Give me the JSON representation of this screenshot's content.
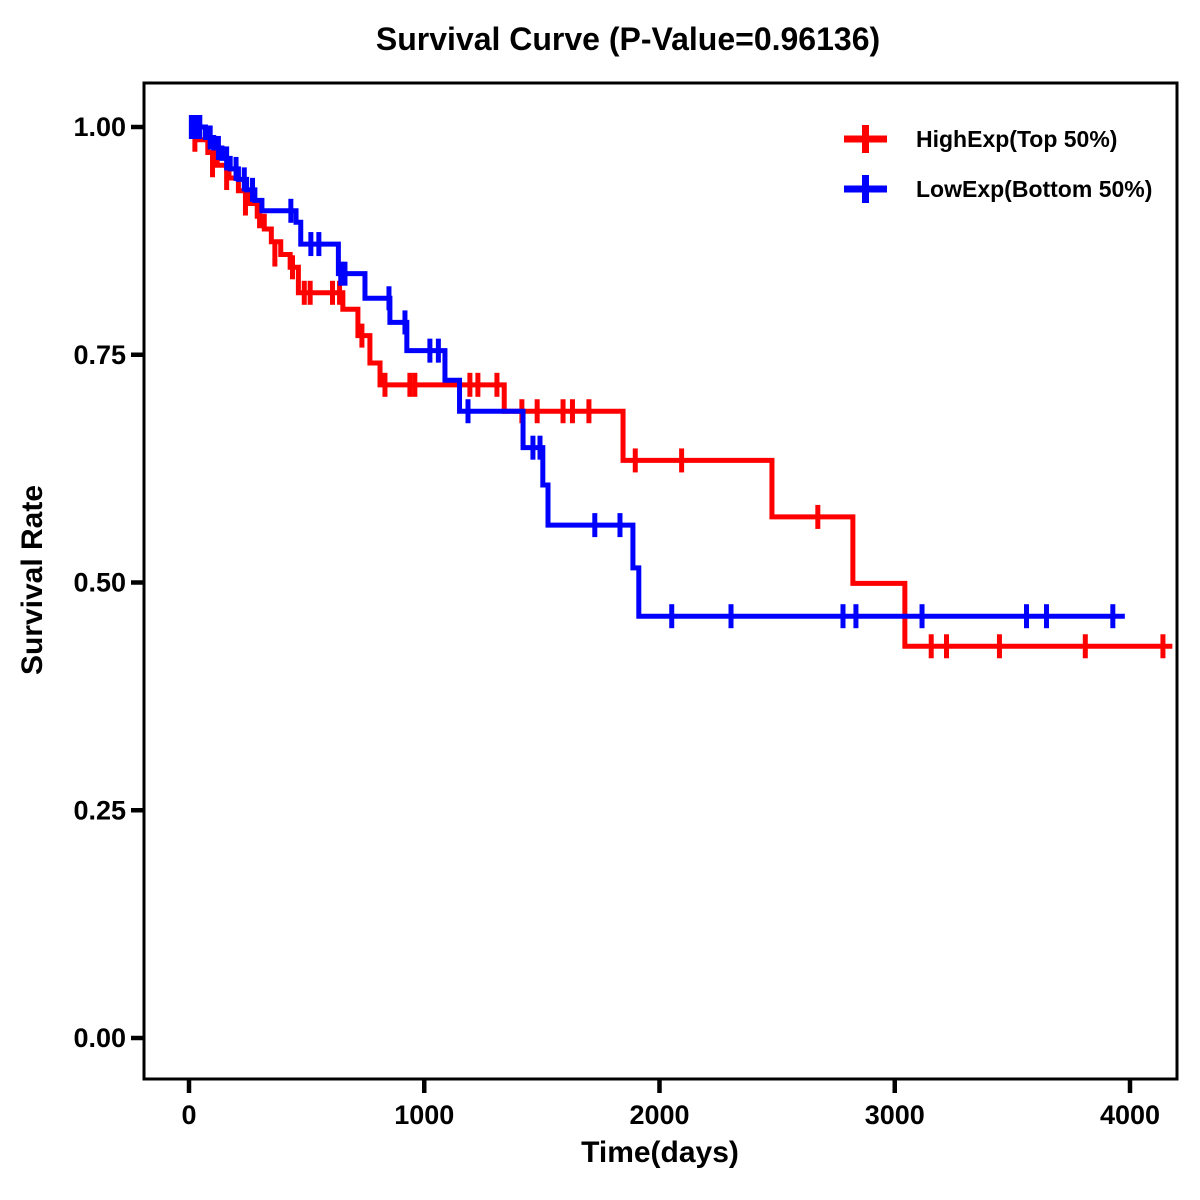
{
  "page": {
    "background": "#ffffff",
    "text_color": "#000000"
  },
  "chart_data": {
    "type": "line",
    "subtype": "kaplan-meier-step-survival",
    "title": "Survival Curve (P-Value=0.96136)",
    "p_value": "0.96136",
    "xlabel": "Time(days)",
    "ylabel": "Survival Rate",
    "grid": false,
    "legend_position": "top-right",
    "xlim": [
      -190,
      4200
    ],
    "ylim": [
      -0.045,
      1.048
    ],
    "xticks": {
      "values": [
        0,
        1000,
        2000,
        3000,
        4000
      ],
      "labels": [
        "0",
        "1000",
        "2000",
        "3000",
        "4000"
      ]
    },
    "yticks": {
      "values": [
        0,
        0.25,
        0.5,
        0.75,
        1
      ],
      "labels": [
        "0.00",
        "0.25",
        "0.50",
        "0.75",
        "1.00"
      ]
    },
    "censor_marker": "plus-tick",
    "series": [
      {
        "name": "HighExp(Top 50%)",
        "color": "#ff0000",
        "end_time": 4180,
        "steps": [
          [
            0,
            1.0
          ],
          [
            40,
            0.986
          ],
          [
            80,
            0.972
          ],
          [
            120,
            0.958
          ],
          [
            170,
            0.944
          ],
          [
            210,
            0.93
          ],
          [
            250,
            0.916
          ],
          [
            290,
            0.902
          ],
          [
            320,
            0.888
          ],
          [
            350,
            0.874
          ],
          [
            390,
            0.86
          ],
          [
            430,
            0.846
          ],
          [
            465,
            0.818
          ],
          [
            654,
            0.8
          ],
          [
            718,
            0.771
          ],
          [
            769,
            0.741
          ],
          [
            812,
            0.717
          ],
          [
            1340,
            0.688
          ],
          [
            1845,
            0.634
          ],
          [
            2478,
            0.572
          ],
          [
            2822,
            0.499
          ],
          [
            3043,
            0.43
          ]
        ],
        "censors": [
          [
            25,
            0.986
          ],
          [
            100,
            0.958
          ],
          [
            160,
            0.944
          ],
          [
            240,
            0.916
          ],
          [
            300,
            0.902
          ],
          [
            365,
            0.86
          ],
          [
            440,
            0.846
          ],
          [
            490,
            0.818
          ],
          [
            515,
            0.818
          ],
          [
            610,
            0.818
          ],
          [
            640,
            0.818
          ],
          [
            735,
            0.771
          ],
          [
            833,
            0.717
          ],
          [
            939,
            0.717
          ],
          [
            960,
            0.717
          ],
          [
            1194,
            0.717
          ],
          [
            1228,
            0.717
          ],
          [
            1309,
            0.717
          ],
          [
            1415,
            0.688
          ],
          [
            1480,
            0.688
          ],
          [
            1590,
            0.688
          ],
          [
            1630,
            0.688
          ],
          [
            1700,
            0.688
          ],
          [
            1897,
            0.634
          ],
          [
            2094,
            0.634
          ],
          [
            2673,
            0.572
          ],
          [
            3155,
            0.43
          ],
          [
            3220,
            0.43
          ],
          [
            3445,
            0.43
          ],
          [
            3810,
            0.43
          ],
          [
            4140,
            0.43
          ]
        ]
      },
      {
        "name": "LowExp(Bottom 50%)",
        "color": "#0000ff",
        "end_time": 3978,
        "steps": [
          [
            0,
            1.0
          ],
          [
            70,
            0.9885
          ],
          [
            105,
            0.977
          ],
          [
            140,
            0.9655
          ],
          [
            175,
            0.954
          ],
          [
            210,
            0.9425
          ],
          [
            245,
            0.931
          ],
          [
            280,
            0.9195
          ],
          [
            310,
            0.908
          ],
          [
            455,
            0.8955
          ],
          [
            475,
            0.8715
          ],
          [
            635,
            0.839
          ],
          [
            748,
            0.812
          ],
          [
            854,
            0.7855
          ],
          [
            926,
            0.7545
          ],
          [
            1088,
            0.722
          ],
          [
            1150,
            0.688
          ],
          [
            1420,
            0.648
          ],
          [
            1504,
            0.607
          ],
          [
            1526,
            0.563
          ],
          [
            1887,
            0.516
          ],
          [
            1912,
            0.463
          ]
        ],
        "censors": [
          [
            10,
            1.0
          ],
          [
            28,
            1.0
          ],
          [
            46,
            1.0
          ],
          [
            90,
            0.9885
          ],
          [
            125,
            0.977
          ],
          [
            160,
            0.9655
          ],
          [
            200,
            0.954
          ],
          [
            235,
            0.9425
          ],
          [
            270,
            0.931
          ],
          [
            433,
            0.908
          ],
          [
            518,
            0.8715
          ],
          [
            552,
            0.8715
          ],
          [
            645,
            0.839
          ],
          [
            663,
            0.839
          ],
          [
            850,
            0.812
          ],
          [
            918,
            0.7855
          ],
          [
            1024,
            0.7545
          ],
          [
            1060,
            0.7545
          ],
          [
            1186,
            0.688
          ],
          [
            1462,
            0.648
          ],
          [
            1492,
            0.648
          ],
          [
            1725,
            0.563
          ],
          [
            1832,
            0.563
          ],
          [
            2052,
            0.463
          ],
          [
            2304,
            0.463
          ],
          [
            2780,
            0.463
          ],
          [
            2835,
            0.463
          ],
          [
            3116,
            0.463
          ],
          [
            3560,
            0.463
          ],
          [
            3645,
            0.463
          ],
          [
            3927,
            0.463
          ]
        ]
      }
    ]
  }
}
